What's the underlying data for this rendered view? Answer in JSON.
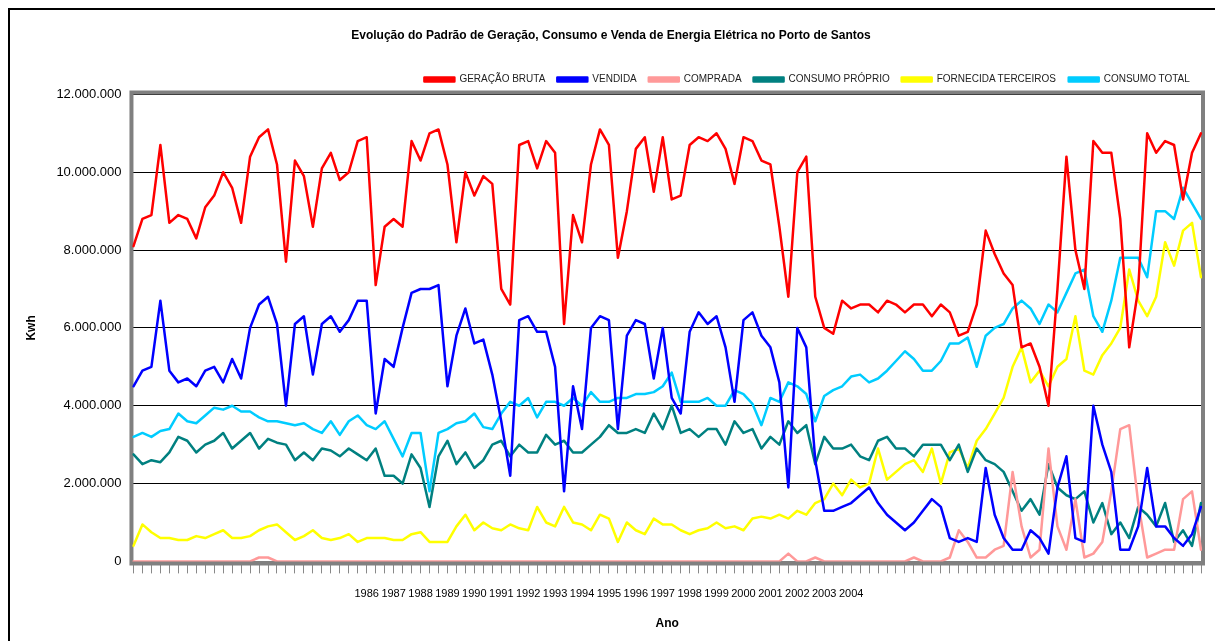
{
  "chart_data": {
    "type": "line",
    "title": "Evolução do Padrão de Geração, Consumo e Venda de Energia Elétrica no Porto de Santos",
    "xlabel": "Ano",
    "ylabel": "Kwh",
    "categories": [
      null,
      null,
      null,
      null,
      null,
      null,
      null,
      null,
      null,
      null,
      null,
      null,
      null,
      null,
      null,
      null,
      null,
      null,
      null,
      null,
      null,
      null,
      null,
      null,
      null,
      null,
      "1986",
      null,
      null,
      "1987",
      null,
      null,
      "1988",
      null,
      null,
      "1989",
      null,
      null,
      "1990",
      null,
      null,
      "1991",
      null,
      null,
      "1992",
      null,
      null,
      "1993",
      null,
      null,
      "1994",
      null,
      null,
      "1995",
      null,
      null,
      "1996",
      null,
      null,
      "1997",
      null,
      null,
      "1998",
      null,
      null,
      "1999",
      null,
      null,
      "2000",
      null,
      null,
      "2001",
      null,
      null,
      "2002",
      null,
      null,
      "2003",
      null,
      null,
      "2004",
      null,
      null,
      null,
      null,
      null,
      null,
      null,
      null,
      null,
      null,
      null,
      null,
      null,
      null,
      null,
      null,
      null,
      null,
      null,
      null,
      null,
      null,
      null,
      null,
      null,
      null,
      null,
      null,
      null,
      null,
      null,
      null,
      null,
      null,
      null,
      null,
      null,
      null,
      null
    ],
    "series": [
      {
        "name": "GERAÇÃO BRUTA",
        "color": "#ff0000",
        "values": [
          8100000.0,
          8800000.0,
          8900000.0,
          10700000.0,
          8700000.0,
          8900000.0,
          8800000.0,
          8300000.0,
          9100000.0,
          9400000.0,
          10000000.0,
          9600000.0,
          8700000.0,
          10400000.0,
          10900000.0,
          11100000.0,
          10200000.0,
          7700000.0,
          10300000.0,
          9900000.0,
          8600000.0,
          10100000.0,
          10500000.0,
          9800000.0,
          10000000.0,
          10800000.0,
          10900000.0,
          7100000.0,
          8600000.0,
          8800000.0,
          8600000.0,
          10800000.0,
          10300000.0,
          11000000.0,
          11100000.0,
          10200000.0,
          8200000.0,
          10000000.0,
          9400000.0,
          9900000.0,
          9700000.0,
          7000000.0,
          6600000.0,
          10700000.0,
          10800000.0,
          10100000.0,
          10800000.0,
          10500000.0,
          6100000.0,
          8900000.0,
          8200000.0,
          10200000.0,
          11100000.0,
          10700000.0,
          7800000.0,
          9000000.0,
          10600000.0,
          10900000.0,
          9500000.0,
          10900000.0,
          9300000.0,
          9400000.0,
          10700000.0,
          10900000.0,
          10800000.0,
          11000000.0,
          10600000.0,
          9700000.0,
          10900000.0,
          10800000.0,
          10300000.0,
          10200000.0,
          8600000.0,
          6800000.0,
          10000000.0,
          10400000.0,
          6800000.0,
          6000000.0,
          5850000.0,
          6700000.0,
          6500000.0,
          6600000.0,
          6600000.0,
          6400000.0,
          6700000.0,
          6600000.0,
          6400000.0,
          6600000.0,
          6600000.0,
          6300000.0,
          6600000.0,
          6400000.0,
          5800000.0,
          5900000.0,
          6600000.0,
          8500000.0,
          7900000.0,
          7400000.0,
          7100000.0,
          5500000.0,
          5600000.0,
          5000000.0,
          4000000.0,
          7000000.0,
          10400000.0,
          8000000.0,
          7000000.0,
          10800000.0,
          10500000.0,
          10500000.0,
          8800000.0,
          5500000.0,
          7000000.0,
          11000000.0,
          10500000.0,
          10800000.0,
          10700000.0,
          9300000.0,
          10500000.0,
          11000000.0
        ]
      },
      {
        "name": "VENDIDA",
        "color": "#0000ff",
        "values": [
          4500000.0,
          4900000.0,
          5000000.0,
          6700000.0,
          4900000.0,
          4600000.0,
          4700000.0,
          4500000.0,
          4900000.0,
          5000000.0,
          4600000.0,
          5200000.0,
          4700000.0,
          6000000.0,
          6600000.0,
          6800000.0,
          6100000.0,
          4000000.0,
          6100000.0,
          6300000.0,
          4800000.0,
          6100000.0,
          6300000.0,
          5900000.0,
          6200000.0,
          6700000.0,
          6700000.0,
          3800000.0,
          5200000.0,
          5000000.0,
          6000000.0,
          6900000.0,
          7000000.0,
          7000000.0,
          7100000.0,
          4500000.0,
          5800000.0,
          6500000.0,
          5600000.0,
          5700000.0,
          4800000.0,
          3600000.0,
          2200000.0,
          6200000.0,
          6300000.0,
          5900000.0,
          5900000.0,
          5000000.0,
          1800000.0,
          4500000.0,
          3400000.0,
          6000000.0,
          6300000.0,
          6200000.0,
          3400000.0,
          5800000.0,
          6200000.0,
          6100000.0,
          4700000.0,
          6000000.0,
          4200000.0,
          3800000.0,
          5900000.0,
          6400000.0,
          6100000.0,
          6300000.0,
          5500000.0,
          4100000.0,
          6200000.0,
          6400000.0,
          5800000.0,
          5500000.0,
          4600000.0,
          1900000.0,
          6000000.0,
          5500000.0,
          2600000.0,
          1300000.0,
          1300000.0,
          1400000.0,
          1500000.0,
          1700000.0,
          1900000.0,
          1500000.0,
          1200000.0,
          1000000.0,
          800000.0,
          1000000.0,
          1300000.0,
          1600000.0,
          1400000.0,
          600000.0,
          500000.0,
          600000.0,
          500000.0,
          2400000.0,
          1200000.0,
          600000.0,
          300000.0,
          300000.0,
          800000.0,
          600000.0,
          200000.0,
          1900000.0,
          2700000.0,
          600000.0,
          500000.0,
          4000000.0,
          3000000.0,
          2300000.0,
          300000.0,
          300000.0,
          900000.0,
          2400000.0,
          900000.0,
          900000.0,
          600000.0,
          400000.0,
          700000.0,
          1400000.0
        ]
      },
      {
        "name": "COMPRADA",
        "color": "#ff9999",
        "values": [
          0,
          0,
          0,
          0,
          0,
          0,
          0,
          0,
          0,
          0,
          0,
          0,
          0,
          0,
          100000.0,
          100000.0,
          0,
          0,
          0,
          0,
          0,
          0,
          0,
          0,
          0,
          0,
          0,
          0,
          0,
          0,
          0,
          0,
          0,
          0,
          0,
          0,
          0,
          0,
          0,
          0,
          0,
          0,
          0,
          0,
          0,
          0,
          0,
          0,
          0,
          0,
          0,
          0,
          0,
          0,
          0,
          0,
          0,
          0,
          0,
          0,
          0,
          0,
          0,
          0,
          0,
          0,
          0,
          0,
          0,
          0,
          0,
          0,
          0,
          200000.0,
          0,
          0,
          100000.0,
          0,
          0,
          0,
          0,
          0,
          0,
          0,
          0,
          0,
          0,
          100000.0,
          0,
          0,
          0,
          100000.0,
          800000.0,
          500000.0,
          100000.0,
          100000.0,
          300000.0,
          400000.0,
          2300000.0,
          900000.0,
          100000.0,
          300000.0,
          2900000.0,
          900000.0,
          300000.0,
          1600000.0,
          100000.0,
          200000.0,
          500000.0,
          1800000.0,
          3400000.0,
          3500000.0,
          1500000.0,
          100000.0,
          200000.0,
          300000.0,
          300000.0,
          1600000.0,
          1800000.0,
          300000.0
        ]
      },
      {
        "name": "CONSUMO PRÓPRIO",
        "color": "#008080",
        "values": [
          2750000.0,
          2500000.0,
          2600000.0,
          2550000.0,
          2800000.0,
          3200000.0,
          3100000.0,
          2800000.0,
          3000000.0,
          3100000.0,
          3300000.0,
          2900000.0,
          3100000.0,
          3300000.0,
          2900000.0,
          3150000.0,
          3050000.0,
          3000000.0,
          2600000.0,
          2800000.0,
          2600000.0,
          2900000.0,
          2850000.0,
          2700000.0,
          2900000.0,
          2750000.0,
          2600000.0,
          2900000.0,
          2200000.0,
          2200000.0,
          2000000.0,
          2750000.0,
          2400000.0,
          1400000.0,
          2700000.0,
          3100000.0,
          2500000.0,
          2800000.0,
          2400000.0,
          2600000.0,
          3000000.0,
          3100000.0,
          2700000.0,
          3000000.0,
          2800000.0,
          2800000.0,
          3250000.0,
          3000000.0,
          3100000.0,
          2800000.0,
          2800000.0,
          3000000.0,
          3200000.0,
          3500000.0,
          3300000.0,
          3300000.0,
          3400000.0,
          3300000.0,
          3800000.0,
          3400000.0,
          4000000.0,
          3300000.0,
          3400000.0,
          3200000.0,
          3400000.0,
          3400000.0,
          3000000.0,
          3600000.0,
          3300000.0,
          3400000.0,
          2900000.0,
          3200000.0,
          3000000.0,
          3600000.0,
          3300000.0,
          3500000.0,
          2500000.0,
          3200000.0,
          2900000.0,
          2900000.0,
          3000000.0,
          2700000.0,
          2600000.0,
          3100000.0,
          3200000.0,
          2900000.0,
          2900000.0,
          2700000.0,
          3000000.0,
          3000000.0,
          3000000.0,
          2600000.0,
          3000000.0,
          2300000.0,
          2900000.0,
          2600000.0,
          2500000.0,
          2300000.0,
          1800000.0,
          1300000.0,
          1600000.0,
          1200000.0,
          2500000.0,
          1900000.0,
          1700000.0,
          1600000.0,
          1800000.0,
          1000000.0,
          1500000.0,
          700000.0,
          1000000.0,
          600000.0,
          1400000.0,
          1200000.0,
          900000.0,
          1500000.0,
          500000.0,
          800000.0,
          400000.0,
          1500000.0
        ]
      },
      {
        "name": "FORNECIDA TERCEIROS",
        "color": "#ffff00",
        "values": [
          400000.0,
          950000.0,
          750000.0,
          600000.0,
          600000.0,
          550000.0,
          550000.0,
          650000.0,
          600000.0,
          700000.0,
          800000.0,
          600000.0,
          600000.0,
          650000.0,
          800000.0,
          900000.0,
          950000.0,
          750000.0,
          550000.0,
          650000.0,
          800000.0,
          600000.0,
          550000.0,
          600000.0,
          700000.0,
          500000.0,
          600000.0,
          600000.0,
          600000.0,
          550000.0,
          550000.0,
          700000.0,
          750000.0,
          500000.0,
          500000.0,
          500000.0,
          900000.0,
          1200000.0,
          800000.0,
          1000000.0,
          850000.0,
          800000.0,
          950000.0,
          850000.0,
          800000.0,
          1400000.0,
          1000000.0,
          900000.0,
          1400000.0,
          1000000.0,
          950000.0,
          800000.0,
          1200000.0,
          1100000.0,
          500000.0,
          1000000.0,
          800000.0,
          700000.0,
          1100000.0,
          950000.0,
          950000.0,
          800000.0,
          700000.0,
          800000.0,
          850000.0,
          1000000.0,
          850000.0,
          900000.0,
          800000.0,
          1100000.0,
          1150000.0,
          1100000.0,
          1200000.0,
          1100000.0,
          1300000.0,
          1200000.0,
          1500000.0,
          1600000.0,
          2000000.0,
          1700000.0,
          2100000.0,
          1900000.0,
          2000000.0,
          2900000.0,
          2100000.0,
          2300000.0,
          2500000.0,
          2600000.0,
          2300000.0,
          2900000.0,
          2000000.0,
          2800000.0,
          2900000.0,
          2400000.0,
          3100000.0,
          3400000.0,
          3800000.0,
          4200000.0,
          5000000.0,
          5500000.0,
          4600000.0,
          4900000.0,
          4500000.0,
          5000000.0,
          5200000.0,
          6300000.0,
          4900000.0,
          4800000.0,
          5300000.0,
          5600000.0,
          6000000.0,
          7500000.0,
          6700000.0,
          6300000.0,
          6800000.0,
          8200000.0,
          7600000.0,
          8500000.0,
          8700000.0,
          7300000.0
        ]
      },
      {
        "name": "CONSUMO TOTAL",
        "color": "#00ccff",
        "values": [
          3200000.0,
          3300000.0,
          3200000.0,
          3350000.0,
          3400000.0,
          3800000.0,
          3600000.0,
          3550000.0,
          3750000.0,
          3950000.0,
          3900000.0,
          4000000.0,
          3850000.0,
          3850000.0,
          3700000.0,
          3600000.0,
          3600000.0,
          3550000.0,
          3500000.0,
          3550000.0,
          3400000.0,
          3300000.0,
          3600000.0,
          3250000.0,
          3600000.0,
          3750000.0,
          3500000.0,
          3400000.0,
          3600000.0,
          3150000.0,
          2700000.0,
          3300000.0,
          3300000.0,
          1800000.0,
          3300000.0,
          3400000.0,
          3550000.0,
          3600000.0,
          3800000.0,
          3450000.0,
          3400000.0,
          3800000.0,
          4100000.0,
          4000000.0,
          4200000.0,
          3700000.0,
          4100000.0,
          4100000.0,
          4000000.0,
          4200000.0,
          4000000.0,
          4350000.0,
          4100000.0,
          4100000.0,
          4200000.0,
          4200000.0,
          4300000.0,
          4300000.0,
          4350000.0,
          4500000.0,
          4850000.0,
          4100000.0,
          4100000.0,
          4100000.0,
          4200000.0,
          4000000.0,
          4000000.0,
          4400000.0,
          4300000.0,
          4050000.0,
          3500000.0,
          4200000.0,
          4100000.0,
          4600000.0,
          4500000.0,
          4300000.0,
          3600000.0,
          4250000.0,
          4400000.0,
          4500000.0,
          4750000.0,
          4800000.0,
          4600000.0,
          4700000.0,
          4900000.0,
          5150000.0,
          5400000.0,
          5200000.0,
          4900000.0,
          4900000.0,
          5150000.0,
          5600000.0,
          5600000.0,
          5750000.0,
          5000000.0,
          5800000.0,
          6000000.0,
          6100000.0,
          6500000.0,
          6700000.0,
          6500000.0,
          6100000.0,
          6600000.0,
          6400000.0,
          6900000.0,
          7400000.0,
          7500000.0,
          6300000.0,
          5900000.0,
          6700000.0,
          7800000.0,
          7800000.0,
          7800000.0,
          7300000.0,
          9000000.0,
          9000000.0,
          8800000.0,
          9600000.0,
          9200000.0,
          8800000.0
        ]
      }
    ],
    "ylim": [
      0,
      12000000
    ],
    "yticks": [
      {
        "value": 0,
        "label": "0"
      },
      {
        "value": 2000000,
        "label": "2.000.000"
      },
      {
        "value": 4000000,
        "label": "4.000.000"
      },
      {
        "value": 6000000,
        "label": "6.000.000"
      },
      {
        "value": 8000000,
        "label": "8.000.000"
      },
      {
        "value": 10000000,
        "label": "10.000.000"
      },
      {
        "value": 12000000,
        "label": "12.000.000"
      }
    ],
    "grid": "y",
    "legend": "top right",
    "marker": "none",
    "line_style": "solid"
  }
}
